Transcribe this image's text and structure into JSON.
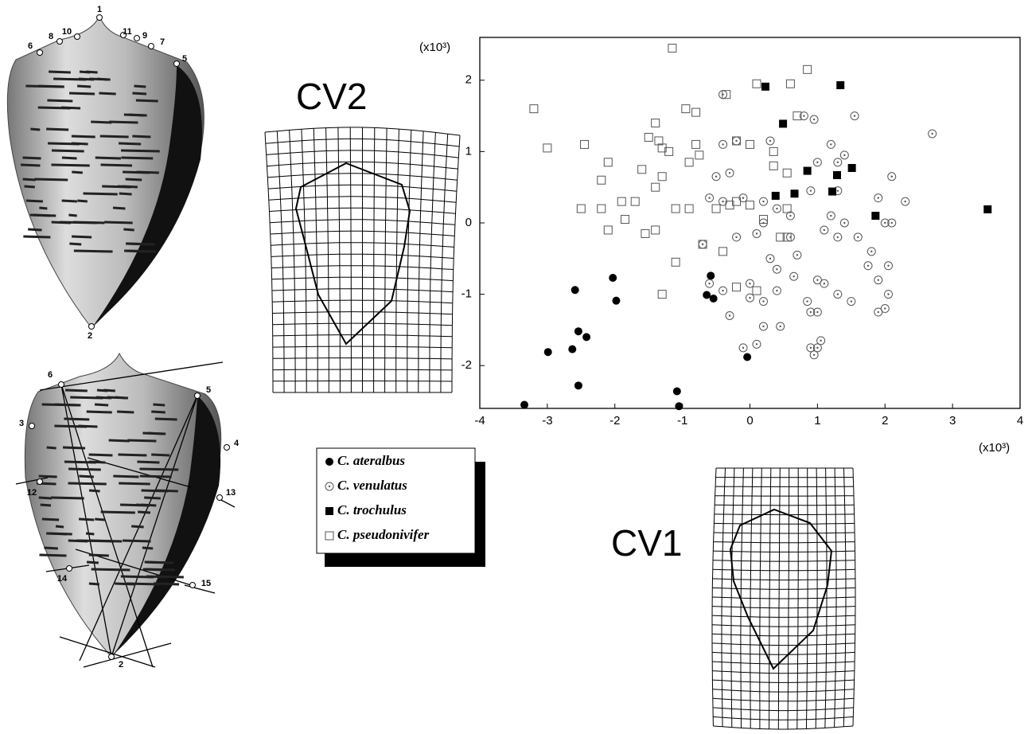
{
  "chart_data": {
    "type": "scatter",
    "x_axis_label": "(x10³)",
    "y_axis_label": "(x10³)",
    "xlim": [
      -4,
      4
    ],
    "ylim": [
      -2.6,
      2.6
    ],
    "xticks": [
      -4,
      -3,
      -2,
      -1,
      0,
      1,
      2,
      3,
      4
    ],
    "yticks": [
      -2,
      -1,
      0,
      1,
      2
    ],
    "series": [
      {
        "name": "C. ateralbus",
        "marker": "filled-circle",
        "color": "#000000",
        "x": [
          -2.59,
          -2.03,
          -1.98,
          -2.54,
          -2.42,
          -2.99,
          -2.63,
          -2.54,
          -3.34,
          -1.08,
          -1.05,
          -0.58,
          -0.64,
          -0.54,
          -0.04
        ],
        "values": [
          -0.94,
          -0.77,
          -1.09,
          -1.52,
          -1.6,
          -1.81,
          -1.77,
          -2.28,
          -2.55,
          -2.36,
          -2.57,
          -0.74,
          -1.01,
          -1.06,
          -1.88
        ]
      },
      {
        "name": "C. venulatus",
        "marker": "open-circle-dot",
        "color": "#555555",
        "x": [
          0.8,
          0.95,
          1.55,
          2.7,
          -0.4,
          1.2,
          1.4,
          0.3,
          -0.2,
          -0.4,
          1.0,
          1.3,
          2.1,
          -0.5,
          -0.3,
          0.9,
          1.3,
          1.9,
          2.3,
          -0.6,
          -0.4,
          -0.1,
          0.2,
          0.4,
          0.6,
          1.2,
          1.4,
          2.0,
          2.1,
          0.2,
          -0.2,
          0.1,
          0.6,
          1.1,
          1.3,
          1.6,
          1.8,
          0.3,
          0.4,
          0.7,
          1.75,
          2.05,
          -0.7,
          -0.6,
          -0.4,
          0.0,
          0.0,
          0.2,
          0.4,
          0.65,
          1.0,
          1.1,
          1.3,
          1.5,
          1.9,
          2.05,
          2.0,
          1.9,
          0.85,
          0.9,
          1.0,
          -0.3,
          0.2,
          0.45,
          -0.1,
          0.1,
          0.9,
          1.0,
          0.95,
          1.05
        ],
        "values": [
          1.5,
          1.45,
          1.5,
          1.25,
          1.8,
          1.1,
          0.95,
          1.15,
          1.15,
          1.1,
          0.85,
          0.85,
          0.65,
          0.65,
          0.7,
          0.45,
          0.45,
          0.35,
          0.3,
          0.35,
          0.3,
          0.35,
          0.3,
          0.2,
          0.1,
          0.1,
          0.0,
          0.0,
          0.0,
          0.0,
          -0.2,
          -0.15,
          -0.2,
          -0.1,
          -0.2,
          -0.2,
          -0.4,
          -0.5,
          -0.65,
          -0.45,
          -0.6,
          -0.6,
          -0.3,
          -0.85,
          -0.95,
          -0.85,
          -1.05,
          -1.1,
          -0.95,
          -0.75,
          -0.8,
          -0.85,
          -1.0,
          -1.1,
          -0.8,
          -1.0,
          -1.2,
          -1.25,
          -1.1,
          -1.25,
          -1.25,
          -1.3,
          -1.45,
          -1.45,
          -1.75,
          -1.7,
          -1.75,
          -1.75,
          -1.85,
          -1.65
        ]
      },
      {
        "name": "C. trochulus",
        "marker": "filled-square",
        "color": "#000000",
        "x": [
          0.23,
          1.34,
          0.49,
          0.85,
          1.51,
          0.38,
          0.66,
          1.29,
          1.22,
          1.86,
          3.52
        ],
        "values": [
          1.91,
          1.93,
          1.39,
          0.73,
          0.77,
          0.38,
          0.41,
          0.67,
          0.44,
          0.1,
          0.19
        ]
      },
      {
        "name": "C. pseudonivifer",
        "marker": "open-square",
        "color": "#555555",
        "x": [
          -1.15,
          0.1,
          0.6,
          0.85,
          0.7,
          -3.2,
          -0.95,
          -0.8,
          -1.4,
          -0.35,
          -3.0,
          -2.45,
          -1.5,
          -1.35,
          -1.3,
          -1.2,
          -0.8,
          -0.9,
          -2.1,
          -1.6,
          -1.3,
          -1.4,
          -0.75,
          -0.2,
          0.0,
          0.35,
          0.35,
          0.55,
          -2.2,
          -2.5,
          -2.2,
          -1.9,
          -1.7,
          -1.1,
          -0.9,
          -0.5,
          -0.3,
          -0.2,
          0.0,
          0.55,
          0.2,
          -2.1,
          -1.85,
          -1.55,
          -1.4,
          -0.7,
          -0.4,
          0.45,
          0.55,
          -1.1,
          -1.3,
          -0.2,
          0.1
        ],
        "values": [
          2.45,
          1.95,
          1.95,
          2.15,
          1.5,
          1.6,
          1.6,
          1.55,
          1.4,
          1.8,
          1.05,
          1.1,
          1.2,
          1.15,
          1.05,
          1.0,
          1.1,
          0.85,
          0.85,
          0.75,
          0.65,
          0.5,
          0.95,
          1.15,
          1.1,
          1.0,
          0.8,
          0.7,
          0.6,
          0.2,
          0.2,
          0.3,
          0.3,
          0.2,
          0.2,
          0.2,
          0.25,
          0.3,
          0.25,
          0.2,
          0.05,
          -0.1,
          0.05,
          -0.15,
          -0.1,
          -0.3,
          -0.4,
          -0.2,
          -0.2,
          -0.55,
          -1.0,
          -0.9,
          -0.95
        ]
      }
    ]
  },
  "figure": {
    "grid_labels": [
      "CV2",
      "CV1"
    ],
    "landmarks_top": [
      "1",
      "6",
      "8",
      "10",
      "11",
      "9",
      "7",
      "5",
      "2"
    ],
    "landmarks_bottom": [
      "6",
      "5",
      "3",
      "4",
      "12",
      "13",
      "14",
      "15",
      "2"
    ]
  }
}
